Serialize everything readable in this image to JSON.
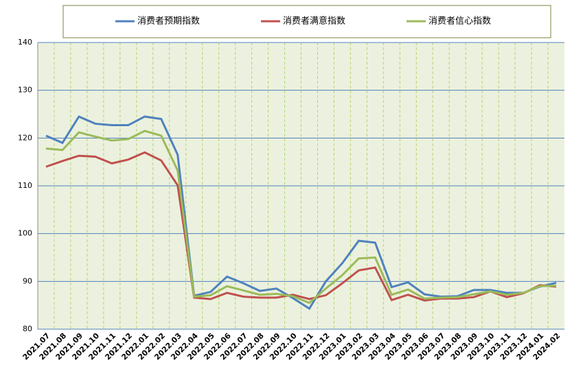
{
  "chart_data": {
    "type": "line",
    "categories": [
      "2021.07",
      "2021.08",
      "2021.09",
      "2021.10",
      "2021.11",
      "2021.12",
      "2022.01",
      "2022.02",
      "2022.03",
      "2022.04",
      "2022.05",
      "2022.06",
      "2022.07",
      "2022.08",
      "2022.09",
      "2022.10",
      "2022.11",
      "2022.12",
      "2023.01",
      "2023.02",
      "2023.03",
      "2023.04",
      "2023.05",
      "2023.06",
      "2023.07",
      "2023.08",
      "2023.09",
      "2023.10",
      "2023.11",
      "2023.12",
      "2024.01",
      "2024.02"
    ],
    "series": [
      {
        "name": "消费者预期指数",
        "color": "#4f81bd",
        "values": [
          120.5,
          119,
          124.5,
          123,
          122.7,
          122.7,
          124.5,
          124,
          116.5,
          87,
          87.8,
          91,
          89.6,
          88,
          88.5,
          86.5,
          84.3,
          90,
          93.8,
          98.5,
          98.1,
          88.8,
          89.8,
          87.3,
          86.8,
          86.9,
          88.2,
          88.2,
          87.6,
          87.6,
          88.9,
          89.7
        ]
      },
      {
        "name": "消费者满意指数",
        "color": "#c0504d",
        "values": [
          114,
          115.2,
          116.3,
          116.1,
          114.7,
          115.5,
          117,
          115.3,
          110.1,
          86.6,
          86.3,
          87.6,
          86.8,
          86.6,
          86.6,
          87.2,
          86.3,
          87.1,
          89.6,
          92.3,
          92.9,
          86.1,
          87.2,
          86,
          86.4,
          86.4,
          86.7,
          87.9,
          86.7,
          87.5,
          89.2,
          88.9
        ]
      },
      {
        "name": "消费者信心指数",
        "color": "#9bbb59",
        "values": [
          117.8,
          117.5,
          121.2,
          120.3,
          119.5,
          119.8,
          121.5,
          120.5,
          113.2,
          86.8,
          87.1,
          89,
          88.1,
          87.2,
          87.4,
          86.9,
          85.5,
          88.5,
          91.3,
          94.8,
          95,
          87.2,
          88.3,
          86.4,
          86.6,
          86.7,
          87.3,
          87.9,
          87.2,
          87.6,
          89,
          89.1
        ]
      }
    ],
    "ylim": [
      80,
      140
    ],
    "yticks": [
      80,
      90,
      100,
      110,
      120,
      130,
      140
    ],
    "grid": true,
    "legend": "top"
  }
}
